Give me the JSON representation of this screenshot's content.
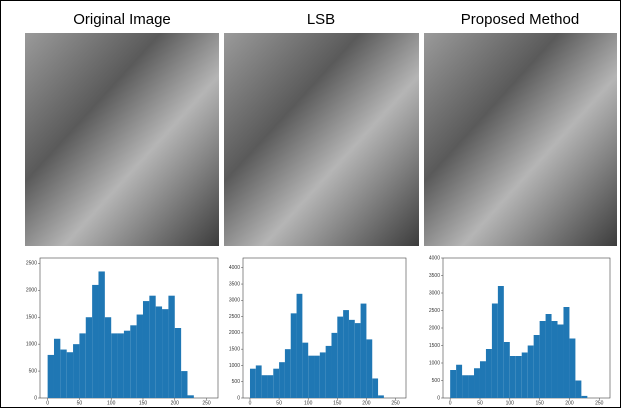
{
  "chart_data": [
    {
      "type": "histogram",
      "title": "Original Image",
      "color": "#1f77b4",
      "bins": [
        0,
        10,
        20,
        30,
        40,
        50,
        60,
        70,
        80,
        90,
        100,
        110,
        120,
        130,
        140,
        150,
        160,
        170,
        180,
        190,
        200,
        210,
        220,
        230,
        240,
        250,
        260
      ],
      "values": [
        800,
        1100,
        900,
        850,
        1000,
        1200,
        1500,
        2100,
        2350,
        1500,
        1200,
        1200,
        1250,
        1350,
        1550,
        1800,
        1900,
        1700,
        1650,
        1900,
        1300,
        500,
        50,
        0,
        0,
        0
      ],
      "xlim": [
        -12,
        268
      ],
      "ylim": [
        0,
        2600
      ],
      "xticks": [
        0,
        50,
        100,
        150,
        200,
        250
      ],
      "yticks": [
        0,
        500,
        1000,
        1500,
        2000,
        2500
      ]
    },
    {
      "type": "histogram",
      "title": "LSB",
      "color": "#1f77b4",
      "bins": [
        0,
        10,
        20,
        30,
        40,
        50,
        60,
        70,
        80,
        90,
        100,
        110,
        120,
        130,
        140,
        150,
        160,
        170,
        180,
        190,
        200,
        210,
        220,
        230,
        240,
        250,
        260
      ],
      "values": [
        900,
        1000,
        700,
        700,
        900,
        1100,
        1500,
        2600,
        3200,
        1700,
        1300,
        1300,
        1400,
        1600,
        2000,
        2500,
        2700,
        2400,
        2300,
        2900,
        1800,
        600,
        80,
        0,
        0,
        0
      ],
      "xlim": [
        -12,
        268
      ],
      "ylim": [
        0,
        4300
      ],
      "xticks": [
        0,
        50,
        100,
        150,
        200,
        250
      ],
      "yticks": [
        0,
        500,
        1000,
        1500,
        2000,
        2500,
        3000,
        3500,
        4000
      ]
    },
    {
      "type": "histogram",
      "title": "Proposed Method",
      "color": "#1f77b4",
      "bins": [
        0,
        10,
        20,
        30,
        40,
        50,
        60,
        70,
        80,
        90,
        100,
        110,
        120,
        130,
        140,
        150,
        160,
        170,
        180,
        190,
        200,
        210,
        220,
        230,
        240,
        250,
        260
      ],
      "values": [
        800,
        950,
        650,
        650,
        850,
        1050,
        1400,
        2700,
        3200,
        1600,
        1200,
        1200,
        1300,
        1500,
        1800,
        2200,
        2400,
        2200,
        2100,
        2600,
        1700,
        500,
        60,
        0,
        0,
        0
      ],
      "xlim": [
        -12,
        268
      ],
      "ylim": [
        0,
        4000
      ],
      "xticks": [
        0,
        50,
        100,
        150,
        200,
        250
      ],
      "yticks": [
        0,
        500,
        1000,
        1500,
        2000,
        2500,
        3000,
        3500,
        4000
      ]
    }
  ]
}
